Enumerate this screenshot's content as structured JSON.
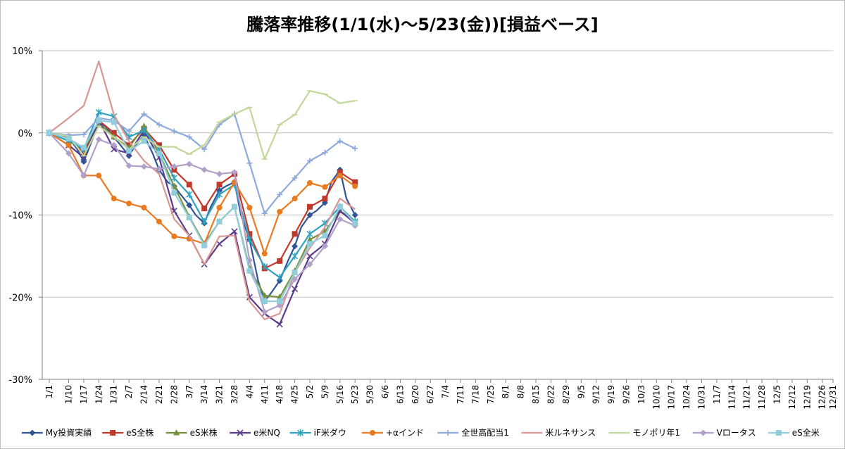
{
  "chart_data": {
    "type": "line",
    "title": "騰落率推移(1/1(水)〜5/23(金))[損益ベース]",
    "xlabel": "",
    "ylabel": "",
    "ylim": [
      -30,
      10
    ],
    "yticks": [
      10,
      0,
      -10,
      -20,
      -30
    ],
    "ytick_labels": [
      "10%",
      "0%",
      "-10%",
      "-20%",
      "-30%"
    ],
    "grid": "horizontal",
    "legend_position": "bottom",
    "x_labels": [
      "1/1",
      "1/10",
      "1/17",
      "1/24",
      "1/31",
      "2/7",
      "2/14",
      "2/21",
      "2/28",
      "3/7",
      "3/14",
      "3/21",
      "3/28",
      "4/4",
      "4/11",
      "4/18",
      "4/25",
      "5/2",
      "5/9",
      "5/16",
      "5/23",
      "5/30",
      "6/6",
      "6/13",
      "6/20",
      "6/27",
      "7/4",
      "7/11",
      "7/18",
      "7/25",
      "8/1",
      "8/8",
      "8/15",
      "8/22",
      "8/29",
      "9/5",
      "9/12",
      "9/19",
      "9/26",
      "10/3",
      "10/10",
      "10/17",
      "10/24",
      "10/31",
      "11/7",
      "11/14",
      "11/21",
      "11/28",
      "12/5",
      "12/12",
      "12/19",
      "12/26",
      "12/31"
    ],
    "x_start": "1/1",
    "x_end": "12/31",
    "series": [
      {
        "name": "My投資実績",
        "color": "#2f5597",
        "marker": "diamond",
        "x": [
          "1/1",
          "1/6",
          "1/10",
          "1/14",
          "1/17",
          "1/20",
          "1/24",
          "1/27",
          "1/31",
          "2/4",
          "2/7",
          "2/10",
          "2/14",
          "2/18",
          "2/21",
          "2/25",
          "2/28",
          "3/3",
          "3/7",
          "3/10",
          "3/14",
          "3/17",
          "3/21",
          "3/24",
          "3/28",
          "3/31",
          "4/4",
          "4/8",
          "4/11",
          "4/14",
          "4/18",
          "4/22",
          "4/25",
          "4/28",
          "5/2",
          "5/5",
          "5/9",
          "5/12",
          "5/16",
          "5/19",
          "5/23"
        ],
        "y": [
          0,
          -0.3,
          -0.6,
          -2,
          -3.5,
          -1.5,
          1.2,
          0.8,
          -0.5,
          -1.8,
          -2.8,
          -1.5,
          -0.3,
          -2.5,
          -4.5,
          -6,
          -6.5,
          -7.5,
          -8.8,
          -10,
          -11,
          -9,
          -7,
          -6.5,
          -6,
          -10,
          -13,
          -18,
          -20.5,
          -19.5,
          -18,
          -15.5,
          -13.8,
          -11.5,
          -10,
          -9.5,
          -8.5,
          -6,
          -4.5,
          -8,
          -10
        ]
      },
      {
        "name": "eS全株",
        "color": "#c0392b",
        "marker": "square",
        "x": [
          "1/1",
          "1/10",
          "1/17",
          "1/24",
          "1/31",
          "2/7",
          "2/14",
          "2/21",
          "2/28",
          "3/7",
          "3/14",
          "3/21",
          "3/28",
          "4/4",
          "4/11",
          "4/18",
          "4/25",
          "5/2",
          "5/9",
          "5/16",
          "5/23"
        ],
        "y": [
          0,
          -0.5,
          -2.5,
          1.5,
          0,
          -1.5,
          0.5,
          -1.5,
          -4.5,
          -6.3,
          -9.2,
          -6.3,
          -5,
          -12.3,
          -16.5,
          -15.6,
          -12.3,
          -9,
          -8,
          -4.8,
          -6
        ]
      },
      {
        "name": "eS米株",
        "color": "#76923c",
        "marker": "triangle",
        "x": [
          "1/1",
          "1/10",
          "1/17",
          "1/24",
          "1/31",
          "2/7",
          "2/14",
          "2/21",
          "2/28",
          "3/7",
          "3/14",
          "3/21",
          "3/28",
          "4/4",
          "4/11",
          "4/18",
          "4/25",
          "5/2",
          "5/9",
          "5/16",
          "5/23"
        ],
        "y": [
          0,
          -1,
          -2,
          1.2,
          -0.5,
          -1.8,
          0.8,
          -2.5,
          -6.5,
          -10.2,
          -13.5,
          -10.8,
          -9,
          -16.5,
          -19.8,
          -20,
          -16.8,
          -13,
          -12,
          -9.5,
          -10.8
        ]
      },
      {
        "name": "e米NQ",
        "color": "#5b3b8c",
        "marker": "x",
        "x": [
          "1/1",
          "1/10",
          "1/17",
          "1/24",
          "1/31",
          "2/7",
          "2/14",
          "2/21",
          "2/28",
          "3/7",
          "3/14",
          "3/21",
          "3/28",
          "4/4",
          "4/11",
          "4/18",
          "4/25",
          "5/2",
          "5/9",
          "5/16",
          "5/23"
        ],
        "y": [
          0,
          -1.5,
          -3,
          1.5,
          -2,
          -2.5,
          0.3,
          -3,
          -9.5,
          -12.5,
          -16,
          -13.5,
          -12,
          -20,
          -22,
          -23.3,
          -19,
          -15,
          -13.5,
          -9.5,
          -11
        ]
      },
      {
        "name": "iF米ダウ",
        "color": "#31a2bf",
        "marker": "star",
        "x": [
          "1/1",
          "1/10",
          "1/17",
          "1/24",
          "1/31",
          "2/7",
          "2/14",
          "2/21",
          "2/28",
          "3/7",
          "3/14",
          "3/21",
          "3/28",
          "4/4",
          "4/11",
          "4/18",
          "4/25",
          "5/2",
          "5/9",
          "5/16",
          "5/23"
        ],
        "y": [
          0,
          -1,
          -2,
          2.5,
          2,
          -0.5,
          0.3,
          -2,
          -5.5,
          -7.5,
          -10.8,
          -7.5,
          -6.3,
          -13,
          -16.3,
          -17.6,
          -15,
          -12.3,
          -11,
          -9,
          -10.8
        ]
      },
      {
        "name": "+αインド",
        "color": "#e97a1f",
        "marker": "circle",
        "x": [
          "1/1",
          "1/10",
          "1/17",
          "1/24",
          "1/31",
          "2/7",
          "2/14",
          "2/21",
          "2/28",
          "3/7",
          "3/14",
          "3/21",
          "3/28",
          "4/4",
          "4/11",
          "4/18",
          "4/25",
          "5/2",
          "5/9",
          "5/16",
          "5/23"
        ],
        "y": [
          0,
          -1.5,
          -5.2,
          -5.2,
          -8,
          -8.6,
          -9.1,
          -10.8,
          -12.6,
          -12.9,
          -13.5,
          -9.1,
          -6,
          -9.1,
          -14.7,
          -9.6,
          -8,
          -6.1,
          -6.6,
          -5.2,
          -6.5
        ]
      },
      {
        "name": "全世高配当1",
        "color": "#8ea9db",
        "marker": "plus",
        "x": [
          "1/1",
          "1/10",
          "1/17",
          "1/24",
          "1/31",
          "2/7",
          "2/14",
          "2/21",
          "2/28",
          "3/7",
          "3/14",
          "3/21",
          "3/28",
          "4/4",
          "4/11",
          "4/18",
          "4/25",
          "5/2",
          "5/9",
          "5/16",
          "5/23"
        ],
        "y": [
          0,
          -0.3,
          -0.2,
          1.8,
          1.5,
          0.2,
          2.3,
          1,
          0.2,
          -0.5,
          -2,
          1,
          2.3,
          -3.7,
          -9.8,
          -7.5,
          -5.5,
          -3.4,
          -2.4,
          -1,
          -1.9
        ]
      },
      {
        "name": "米ルネサンス",
        "color": "#d99694",
        "marker": "none",
        "x": [
          "1/1",
          "1/10",
          "1/17",
          "1/24",
          "1/31",
          "2/7",
          "2/14",
          "2/21",
          "2/28",
          "3/7",
          "3/14",
          "3/21",
          "3/28",
          "4/4",
          "4/11",
          "4/18",
          "4/25",
          "5/2",
          "5/9",
          "5/16",
          "5/23"
        ],
        "y": [
          0,
          1.8,
          3.3,
          8.7,
          2.2,
          -1,
          -3.4,
          -5,
          -10.5,
          -12.5,
          -16,
          -12.6,
          -12.5,
          -20.5,
          -22.7,
          -22,
          -17,
          -14,
          -11.5,
          -8,
          -9.3
        ]
      },
      {
        "name": "モノポリ年1",
        "color": "#c3d69b",
        "marker": "dash",
        "x": [
          "1/1",
          "1/10",
          "1/17",
          "1/24",
          "1/31",
          "2/7",
          "2/14",
          "2/21",
          "2/28",
          "3/7",
          "3/14",
          "3/21",
          "3/28",
          "4/4",
          "4/11",
          "4/18",
          "4/25",
          "5/2",
          "5/9",
          "5/16",
          "5/23"
        ],
        "y": [
          0,
          -0.4,
          -2.8,
          0.8,
          -0.5,
          -2,
          -0.5,
          -1.7,
          -1.7,
          -2.6,
          -1.5,
          1.3,
          2.3,
          3.1,
          -3.2,
          1,
          2.2,
          5.1,
          4.7,
          3.6,
          3.9
        ]
      },
      {
        "name": "Vロータス",
        "color": "#b1a0c7",
        "marker": "diamond",
        "x": [
          "1/1",
          "1/10",
          "1/17",
          "1/24",
          "1/31",
          "2/7",
          "2/14",
          "2/21",
          "2/28",
          "3/7",
          "3/14",
          "3/21",
          "3/28",
          "4/4",
          "4/11",
          "4/18",
          "4/25",
          "5/2",
          "5/9",
          "5/16",
          "5/23"
        ],
        "y": [
          0,
          -2.5,
          -5.2,
          -0.8,
          -1.5,
          -4,
          -4.1,
          -4.4,
          -4.1,
          -3.8,
          -4.5,
          -5,
          -4.8,
          -15.5,
          -21.8,
          -21,
          -17.8,
          -16,
          -13.8,
          -10.5,
          -11.3
        ]
      },
      {
        "name": "eS全米",
        "color": "#92cddc",
        "marker": "square",
        "x": [
          "1/1",
          "1/10",
          "1/17",
          "1/24",
          "1/31",
          "2/7",
          "2/14",
          "2/21",
          "2/28",
          "3/7",
          "3/14",
          "3/21",
          "3/28",
          "4/4",
          "4/11",
          "4/18",
          "4/25",
          "5/2",
          "5/9",
          "5/16",
          "5/23"
        ],
        "y": [
          0,
          -0.7,
          -1.8,
          1.5,
          1.3,
          -2.2,
          -1,
          -2.5,
          -7.3,
          -10.3,
          -13.7,
          -10.8,
          -9,
          -16.8,
          -20.5,
          -20.5,
          -17,
          -13.5,
          -12.5,
          -9,
          -11
        ]
      }
    ]
  }
}
